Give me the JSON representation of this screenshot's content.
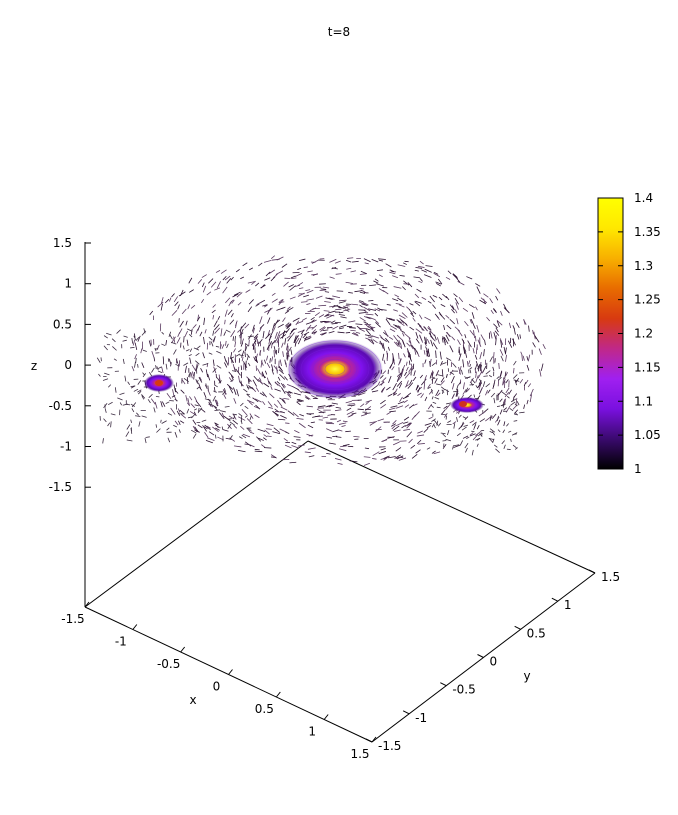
{
  "chart_data": {
    "type": "scatter",
    "subtype": "3d-vector-field",
    "title": "t=8",
    "xlabel": "x",
    "ylabel": "y",
    "zlabel": "z",
    "xlim": [
      -1.5,
      1.5
    ],
    "ylim": [
      -1.5,
      1.5
    ],
    "zlim": [
      -1.5,
      1.5
    ],
    "x_ticks": [
      "-1.5",
      "-1",
      "-0.5",
      "0",
      "0.5",
      "1",
      "1.5"
    ],
    "y_ticks": [
      "-1.5",
      "-1",
      "-0.5",
      "0",
      "0.5",
      "1",
      "1.5"
    ],
    "z_ticks": [
      "1.5",
      "1",
      "0.5",
      "0",
      "-0.5",
      "-1",
      "-1.5"
    ],
    "grid": false,
    "colorbar": {
      "min": 1,
      "max": 1.4,
      "ticks": [
        "1.4",
        "1.35",
        "1.3",
        "1.25",
        "1.2",
        "1.15",
        "1.1",
        "1.05",
        "1"
      ],
      "palette": [
        "#000000",
        "#3a0a6e",
        "#7a10e0",
        "#a020f0",
        "#c02888",
        "#d83a10",
        "#e86c00",
        "#f8b000",
        "#ffe800",
        "#ffff00"
      ],
      "placement": "right"
    },
    "vortices": [
      {
        "name": "main",
        "peak_value": 1.4,
        "relative_radius": "large"
      },
      {
        "name": "left",
        "peak_value": 1.27,
        "relative_radius": "small"
      },
      {
        "name": "right",
        "peak_value": 1.25,
        "relative_radius": "small"
      }
    ]
  }
}
